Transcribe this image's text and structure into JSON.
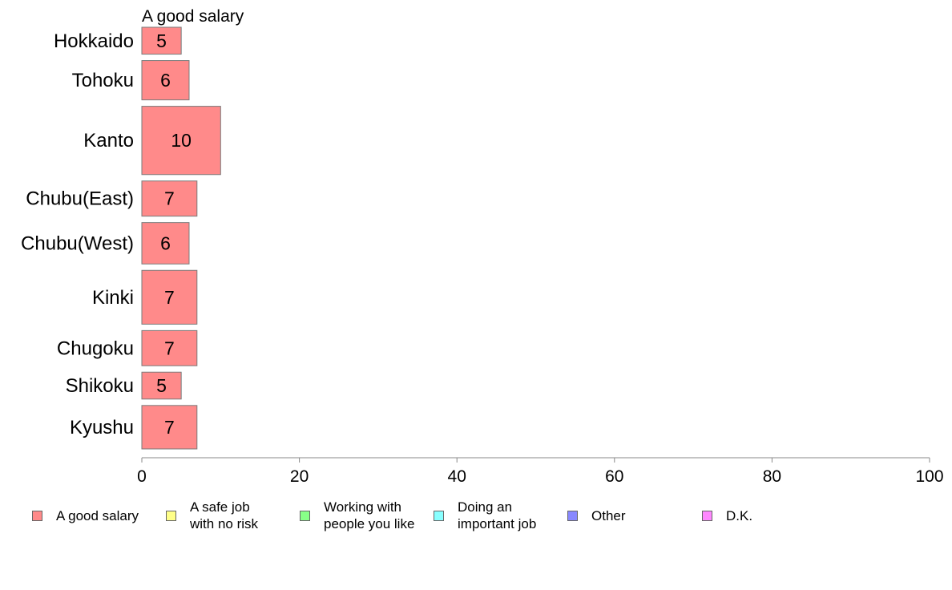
{
  "chart_data": {
    "type": "bar",
    "orientation": "horizontal",
    "title": "A good salary",
    "categories": [
      "Hokkaido",
      "Tohoku",
      "Kanto",
      "Chubu(East)",
      "Chubu(West)",
      "Kinki",
      "Chugoku",
      "Shikoku",
      "Kyushu"
    ],
    "category_weights": [
      0.65,
      0.95,
      1.65,
      0.85,
      1.0,
      1.3,
      0.85,
      0.65,
      1.05
    ],
    "series": [
      {
        "name": "A good salary",
        "values": [
          5,
          6,
          10,
          7,
          6,
          7,
          7,
          5,
          7
        ],
        "color": "#ff8a8a"
      }
    ],
    "xlim": [
      0,
      100
    ],
    "xticks": [
      0,
      20,
      40,
      60,
      80,
      100
    ],
    "grid": false,
    "legend_position": "bottom"
  },
  "legend": [
    {
      "label": "A good salary",
      "color": "#ff8a8a"
    },
    {
      "label": "A safe job\nwith no risk",
      "color": "#ffff88"
    },
    {
      "label": "Working with\npeople you like",
      "color": "#88ff88"
    },
    {
      "label": "Doing an\nimportant job",
      "color": "#88ffff"
    },
    {
      "label": "Other",
      "color": "#8888ff"
    },
    {
      "label": "D.K.",
      "color": "#ff88ff"
    }
  ]
}
